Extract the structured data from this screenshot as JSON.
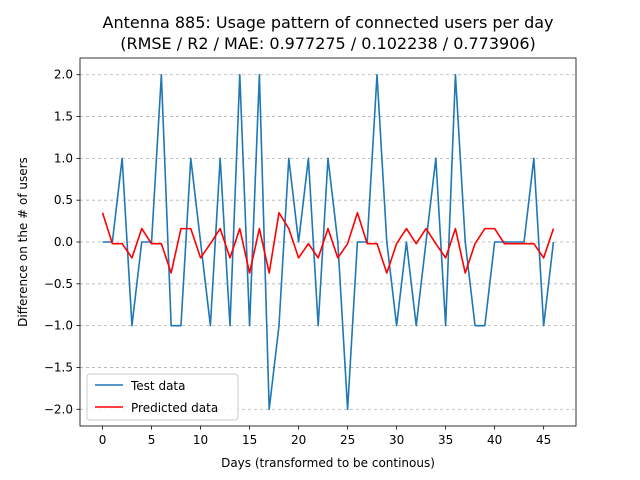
{
  "chart_data": {
    "type": "line",
    "title": "Antenna 885: Usage pattern of connected users per day",
    "subtitle": "(RMSE / R2 / MAE: 0.977275 / 0.102238 / 0.773906)",
    "xlabel": "Days (transformed to be continous)",
    "ylabel": "Difference on the # of users",
    "xlim": [
      -2.3,
      48.3
    ],
    "ylim": [
      -2.2,
      2.2
    ],
    "xticks": [
      0,
      5,
      10,
      15,
      20,
      25,
      30,
      35,
      40,
      45
    ],
    "xtick_labels": [
      "0",
      "5",
      "10",
      "15",
      "20",
      "25",
      "30",
      "35",
      "40",
      "45"
    ],
    "yticks": [
      2.0,
      1.5,
      1.0,
      0.5,
      0.0,
      -0.5,
      -1.0,
      -1.5,
      -2.0
    ],
    "ytick_labels": [
      "2.0",
      "1.5",
      "1.0",
      "0.5",
      "0.0",
      "−0.5",
      "−1.0",
      "−1.5",
      "−2.0"
    ],
    "grid": "y-dashed",
    "legend_position": "lower-left",
    "x": [
      0,
      1,
      2,
      3,
      4,
      5,
      6,
      7,
      8,
      9,
      10,
      11,
      12,
      13,
      14,
      15,
      16,
      17,
      18,
      19,
      20,
      21,
      22,
      23,
      24,
      25,
      26,
      27,
      28,
      29,
      30,
      31,
      32,
      33,
      34,
      35,
      36,
      37,
      38,
      39,
      40,
      41,
      42,
      43,
      44,
      45,
      46
    ],
    "series": [
      {
        "name": "Test data",
        "color": "#1f77b4",
        "values": [
          0,
          0,
          1,
          -1,
          0,
          0,
          2,
          -1,
          -1,
          1,
          0,
          -1,
          1,
          -1,
          2,
          -1,
          2,
          -2,
          -1,
          1,
          0,
          1,
          -1,
          1,
          0,
          -2,
          0,
          0,
          2,
          0,
          -1,
          0,
          -1,
          0,
          1,
          -1,
          2,
          0,
          -1,
          -1,
          0,
          0,
          0,
          0,
          1,
          -1,
          0
        ]
      },
      {
        "name": "Predicted data",
        "color": "#ff0000",
        "values": [
          0.35,
          -0.02,
          -0.02,
          -0.19,
          0.16,
          -0.02,
          -0.02,
          -0.37,
          0.16,
          0.16,
          -0.19,
          -0.02,
          0.16,
          -0.19,
          0.16,
          -0.37,
          0.16,
          -0.37,
          0.35,
          0.16,
          -0.19,
          -0.02,
          -0.19,
          0.16,
          -0.19,
          -0.02,
          0.35,
          -0.02,
          -0.02,
          -0.37,
          -0.02,
          0.16,
          -0.02,
          0.16,
          -0.02,
          -0.19,
          0.16,
          -0.37,
          -0.02,
          0.16,
          0.16,
          -0.02,
          -0.02,
          -0.02,
          -0.02,
          -0.19,
          0.16
        ]
      }
    ]
  }
}
